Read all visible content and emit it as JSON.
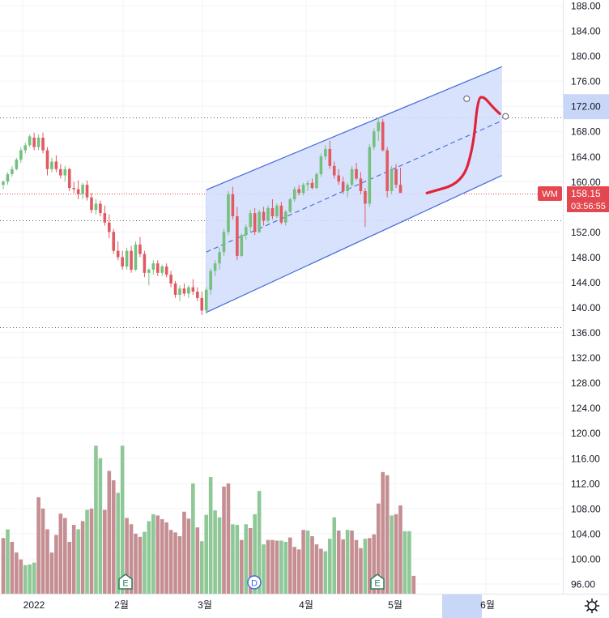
{
  "chart_data": {
    "type": "candlestick",
    "symbol": "WM",
    "last_price": "158.15",
    "countdown": "03:56:55",
    "y_ticks": [
      "188.00",
      "184.00",
      "180.00",
      "176.00",
      "172.00",
      "168.00",
      "164.00",
      "160.00",
      "156.00",
      "152.00",
      "148.00",
      "144.00",
      "140.00",
      "136.00",
      "132.00",
      "128.00",
      "124.00",
      "120.00",
      "116.00",
      "112.00",
      "108.00",
      "104.00",
      "100.00",
      "96.00"
    ],
    "highlighted_y_tick": "172.00",
    "x_ticks": [
      "2022",
      "2월",
      "3월",
      "4월",
      "5월",
      "6월"
    ],
    "horizontal_levels": [
      170.2,
      158.15,
      153.8,
      136.8
    ],
    "ylim": [
      94.4,
      189.5
    ],
    "candles": [
      [
        159.5,
        160.2,
        158.8,
        160.0
      ],
      [
        160.0,
        161.5,
        159.5,
        161.2
      ],
      [
        161.2,
        162.5,
        160.8,
        162.0
      ],
      [
        162.0,
        163.8,
        161.8,
        163.5
      ],
      [
        163.5,
        165.5,
        163.0,
        165.0
      ],
      [
        165.0,
        166.2,
        164.5,
        165.8
      ],
      [
        165.8,
        167.5,
        165.5,
        167.2
      ],
      [
        167.0,
        167.8,
        165.0,
        165.5
      ],
      [
        165.5,
        167.5,
        165.0,
        167.0
      ],
      [
        167.0,
        167.8,
        164.5,
        165.0
      ],
      [
        165.0,
        165.5,
        161.0,
        162.0
      ],
      [
        162.0,
        163.8,
        161.5,
        163.2
      ],
      [
        163.2,
        164.2,
        161.5,
        162.0
      ],
      [
        162.0,
        162.8,
        160.5,
        161.0
      ],
      [
        161.0,
        162.5,
        160.0,
        162.0
      ],
      [
        162.0,
        162.2,
        158.5,
        159.0
      ],
      [
        159.0,
        160.0,
        158.2,
        158.8
      ],
      [
        158.8,
        160.2,
        157.2,
        158.0
      ],
      [
        158.0,
        159.8,
        157.2,
        159.5
      ],
      [
        159.5,
        160.2,
        157.0,
        157.5
      ],
      [
        157.5,
        158.2,
        155.0,
        155.5
      ],
      [
        155.5,
        157.2,
        154.8,
        156.5
      ],
      [
        156.5,
        157.0,
        154.5,
        155.0
      ],
      [
        155.0,
        156.2,
        153.0,
        153.5
      ],
      [
        153.5,
        154.8,
        151.0,
        152.0
      ],
      [
        152.0,
        152.5,
        148.5,
        149.0
      ],
      [
        149.0,
        150.5,
        147.5,
        148.0
      ],
      [
        148.0,
        149.0,
        146.0,
        146.5
      ],
      [
        146.5,
        149.5,
        146.0,
        149.0
      ],
      [
        149.0,
        149.8,
        145.5,
        146.0
      ],
      [
        146.0,
        150.5,
        145.8,
        150.0
      ],
      [
        150.0,
        151.2,
        148.0,
        148.5
      ],
      [
        148.5,
        149.0,
        144.8,
        145.5
      ],
      [
        145.5,
        146.2,
        143.5,
        146.0
      ],
      [
        146.0,
        147.5,
        145.2,
        147.0
      ],
      [
        147.0,
        147.5,
        145.0,
        145.5
      ],
      [
        145.5,
        146.8,
        145.0,
        146.5
      ],
      [
        146.5,
        147.0,
        144.8,
        145.2
      ],
      [
        145.2,
        145.8,
        143.2,
        143.8
      ],
      [
        143.8,
        144.2,
        141.5,
        142.0
      ],
      [
        142.0,
        143.5,
        141.0,
        143.0
      ],
      [
        143.0,
        143.8,
        141.8,
        142.2
      ],
      [
        142.2,
        143.5,
        141.5,
        143.2
      ],
      [
        143.2,
        144.5,
        142.0,
        142.5
      ],
      [
        142.5,
        143.2,
        141.0,
        141.5
      ],
      [
        141.5,
        142.5,
        138.8,
        139.5
      ],
      [
        139.5,
        143.2,
        139.0,
        142.8
      ],
      [
        142.8,
        146.2,
        142.0,
        145.8
      ],
      [
        145.8,
        147.5,
        145.0,
        147.0
      ],
      [
        147.0,
        149.5,
        146.0,
        148.8
      ],
      [
        148.8,
        152.5,
        148.2,
        152.0
      ],
      [
        152.0,
        158.5,
        151.5,
        158.0
      ],
      [
        158.0,
        159.2,
        154.0,
        154.5
      ],
      [
        154.5,
        156.0,
        147.5,
        148.2
      ],
      [
        148.2,
        151.8,
        148.0,
        151.5
      ],
      [
        151.5,
        153.2,
        150.8,
        152.8
      ],
      [
        152.8,
        155.5,
        152.0,
        155.0
      ],
      [
        155.0,
        155.8,
        151.5,
        152.0
      ],
      [
        152.0,
        155.5,
        151.8,
        155.2
      ],
      [
        155.2,
        156.0,
        153.0,
        153.8
      ],
      [
        153.8,
        156.2,
        153.5,
        155.8
      ],
      [
        155.8,
        157.2,
        154.0,
        154.5
      ],
      [
        154.5,
        156.5,
        154.2,
        156.2
      ],
      [
        156.2,
        156.8,
        153.2,
        153.5
      ],
      [
        153.5,
        155.5,
        153.0,
        155.2
      ],
      [
        155.2,
        157.5,
        155.0,
        157.2
      ],
      [
        157.2,
        159.2,
        156.8,
        158.8
      ],
      [
        158.8,
        159.5,
        157.8,
        158.2
      ],
      [
        158.2,
        159.8,
        157.8,
        159.5
      ],
      [
        159.5,
        160.2,
        158.5,
        159.8
      ],
      [
        159.8,
        160.5,
        158.8,
        159.0
      ],
      [
        159.0,
        161.5,
        158.8,
        161.2
      ],
      [
        161.2,
        164.5,
        160.8,
        164.0
      ],
      [
        164.0,
        165.8,
        163.5,
        165.2
      ],
      [
        165.2,
        166.5,
        162.0,
        162.5
      ],
      [
        162.5,
        163.2,
        160.5,
        161.0
      ],
      [
        161.0,
        162.0,
        159.5,
        160.0
      ],
      [
        160.0,
        160.8,
        158.0,
        158.5
      ],
      [
        158.5,
        159.8,
        157.5,
        159.5
      ],
      [
        159.5,
        162.5,
        159.2,
        162.0
      ],
      [
        162.0,
        163.0,
        160.2,
        160.5
      ],
      [
        160.5,
        161.5,
        158.0,
        158.5
      ],
      [
        158.5,
        159.0,
        152.8,
        156.5
      ],
      [
        156.5,
        166.0,
        156.0,
        165.5
      ],
      [
        165.5,
        168.5,
        165.0,
        168.0
      ],
      [
        168.0,
        170.2,
        166.5,
        169.5
      ],
      [
        169.5,
        170.0,
        164.8,
        165.0
      ],
      [
        165.0,
        165.5,
        157.5,
        158.5
      ],
      [
        158.5,
        162.5,
        158.0,
        162.0
      ],
      [
        162.0,
        162.8,
        159.0,
        159.5
      ],
      [
        159.5,
        162.2,
        158.2,
        158.2
      ]
    ],
    "volumes": [
      [
        103.3,
        0
      ],
      [
        104.7,
        1
      ],
      [
        102.7,
        0
      ],
      [
        101.0,
        0
      ],
      [
        99.9,
        0
      ],
      [
        99.0,
        1
      ],
      [
        99.1,
        1
      ],
      [
        99.4,
        1
      ],
      [
        109.8,
        0
      ],
      [
        108.0,
        0
      ],
      [
        104.7,
        0
      ],
      [
        101.0,
        0
      ],
      [
        103.8,
        0
      ],
      [
        107.2,
        0
      ],
      [
        106.5,
        0
      ],
      [
        102.7,
        0
      ],
      [
        105.4,
        0
      ],
      [
        104.7,
        1
      ],
      [
        106.0,
        0
      ],
      [
        107.8,
        1
      ],
      [
        108.0,
        0
      ],
      [
        118.0,
        1
      ],
      [
        116.0,
        1
      ],
      [
        107.8,
        0
      ],
      [
        114.0,
        0
      ],
      [
        112.5,
        0
      ],
      [
        110.5,
        1
      ],
      [
        118.0,
        1
      ],
      [
        106.5,
        0
      ],
      [
        105.5,
        0
      ],
      [
        104.0,
        0
      ],
      [
        103.5,
        0
      ],
      [
        104.3,
        1
      ],
      [
        106.0,
        1
      ],
      [
        107.1,
        1
      ],
      [
        106.9,
        0
      ],
      [
        106.3,
        0
      ],
      [
        105.8,
        0
      ],
      [
        104.6,
        0
      ],
      [
        104.2,
        0
      ],
      [
        103.6,
        0
      ],
      [
        107.5,
        0
      ],
      [
        106.4,
        0
      ],
      [
        112.0,
        1
      ],
      [
        105.0,
        0
      ],
      [
        102.8,
        1
      ],
      [
        107.0,
        1
      ],
      [
        113.0,
        1
      ],
      [
        107.7,
        1
      ],
      [
        106.6,
        1
      ],
      [
        111.5,
        0
      ],
      [
        112.0,
        0
      ],
      [
        105.5,
        1
      ],
      [
        105.4,
        1
      ],
      [
        103.0,
        0
      ],
      [
        105.5,
        1
      ],
      [
        104.9,
        0
      ],
      [
        107.1,
        1
      ],
      [
        110.8,
        1
      ],
      [
        102.3,
        1
      ],
      [
        103.0,
        0
      ],
      [
        103.0,
        0
      ],
      [
        102.9,
        0
      ],
      [
        102.9,
        1
      ],
      [
        102.7,
        1
      ],
      [
        103.4,
        0
      ],
      [
        101.9,
        0
      ],
      [
        101.5,
        0
      ],
      [
        104.6,
        0
      ],
      [
        104.5,
        1
      ],
      [
        103.6,
        0
      ],
      [
        102.3,
        0
      ],
      [
        101.6,
        0
      ],
      [
        101.2,
        1
      ],
      [
        103.2,
        1
      ],
      [
        106.6,
        1
      ],
      [
        104.5,
        0
      ],
      [
        103.1,
        0
      ],
      [
        104.6,
        1
      ],
      [
        104.5,
        0
      ],
      [
        103.0,
        0
      ],
      [
        101.7,
        0
      ],
      [
        103.2,
        1
      ],
      [
        103.3,
        0
      ],
      [
        103.9,
        0
      ],
      [
        108.8,
        0
      ],
      [
        113.8,
        0
      ],
      [
        113.3,
        0
      ],
      [
        106.9,
        1
      ],
      [
        107.1,
        0
      ],
      [
        108.5,
        0
      ],
      [
        104.4,
        1
      ],
      [
        104.4,
        1
      ],
      [
        97.3,
        0
      ]
    ],
    "events": [
      "E",
      "D",
      "E"
    ],
    "channel": {
      "upper": [
        [
          46,
          158.7
        ],
        [
          113,
          178.3
        ]
      ],
      "lower": [
        [
          46,
          139.2
        ],
        [
          113,
          161.0
        ]
      ],
      "midline": [
        [
          46,
          148.8
        ],
        [
          113,
          169.7
        ]
      ],
      "handles": [
        [
          105,
          173.2
        ],
        [
          113.8,
          170.4
        ]
      ]
    },
    "projection_path": [
      [
        96,
        158.2
      ],
      [
        104,
        159.8
      ],
      [
        106.5,
        165.5
      ],
      [
        107.5,
        173.2
      ],
      [
        108.8,
        173.6
      ],
      [
        111,
        171.8
      ],
      [
        112.5,
        170.8
      ]
    ],
    "colors": {
      "up": "#74c07e",
      "down": "#e05a63",
      "volume_up": "#8fc897",
      "volume_down": "#c58e92",
      "channel_line": "#3f6ad8",
      "channel_fill": "#d2ddfb",
      "projection": "#e0233a",
      "label_bg": "#e3474f",
      "highlight_bg": "#c8d6f7"
    }
  }
}
